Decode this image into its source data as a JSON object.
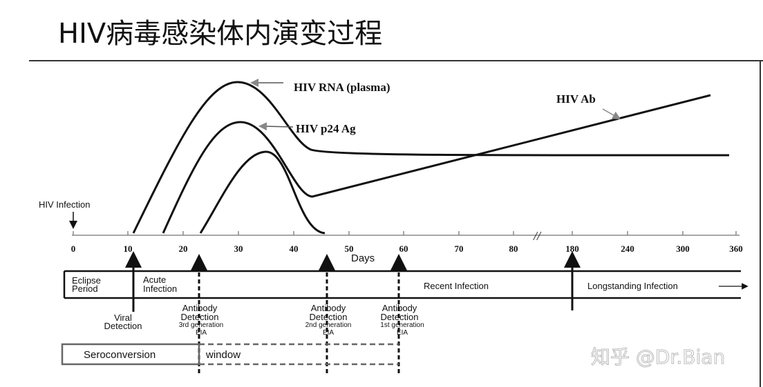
{
  "title": "HIV病毒感染体内演变过程",
  "curves": {
    "rna_label": "HIV RNA (plasma)",
    "p24_label": "HIV p24 Ag",
    "ab_label": "HIV Ab"
  },
  "axis": {
    "infection_label": "HIV Infection",
    "ticks": [
      "0",
      "10",
      "20",
      "30",
      "40",
      "50",
      "60",
      "70",
      "80",
      "180",
      "240",
      "300",
      "360"
    ],
    "xlabel": "Days"
  },
  "band": {
    "eclipse": [
      "Eclipse",
      "Period"
    ],
    "acute": [
      "Acute",
      "Infection"
    ],
    "recent": "Recent Infection",
    "longstanding": "Longstanding Infection"
  },
  "markers": {
    "viral": [
      "Viral",
      "Detection"
    ],
    "ab3": [
      "Antibody",
      "Detection",
      "3rd generation",
      "EIA"
    ],
    "ab2": [
      "Antibody",
      "Detection",
      "2nd generation",
      "EIA"
    ],
    "ab1": [
      "Antibody",
      "Detection",
      "1st generation",
      "EIA"
    ]
  },
  "window": {
    "seroconversion": "Seroconversion",
    "window": "window"
  },
  "watermark": "知乎 @Dr.Bian"
}
